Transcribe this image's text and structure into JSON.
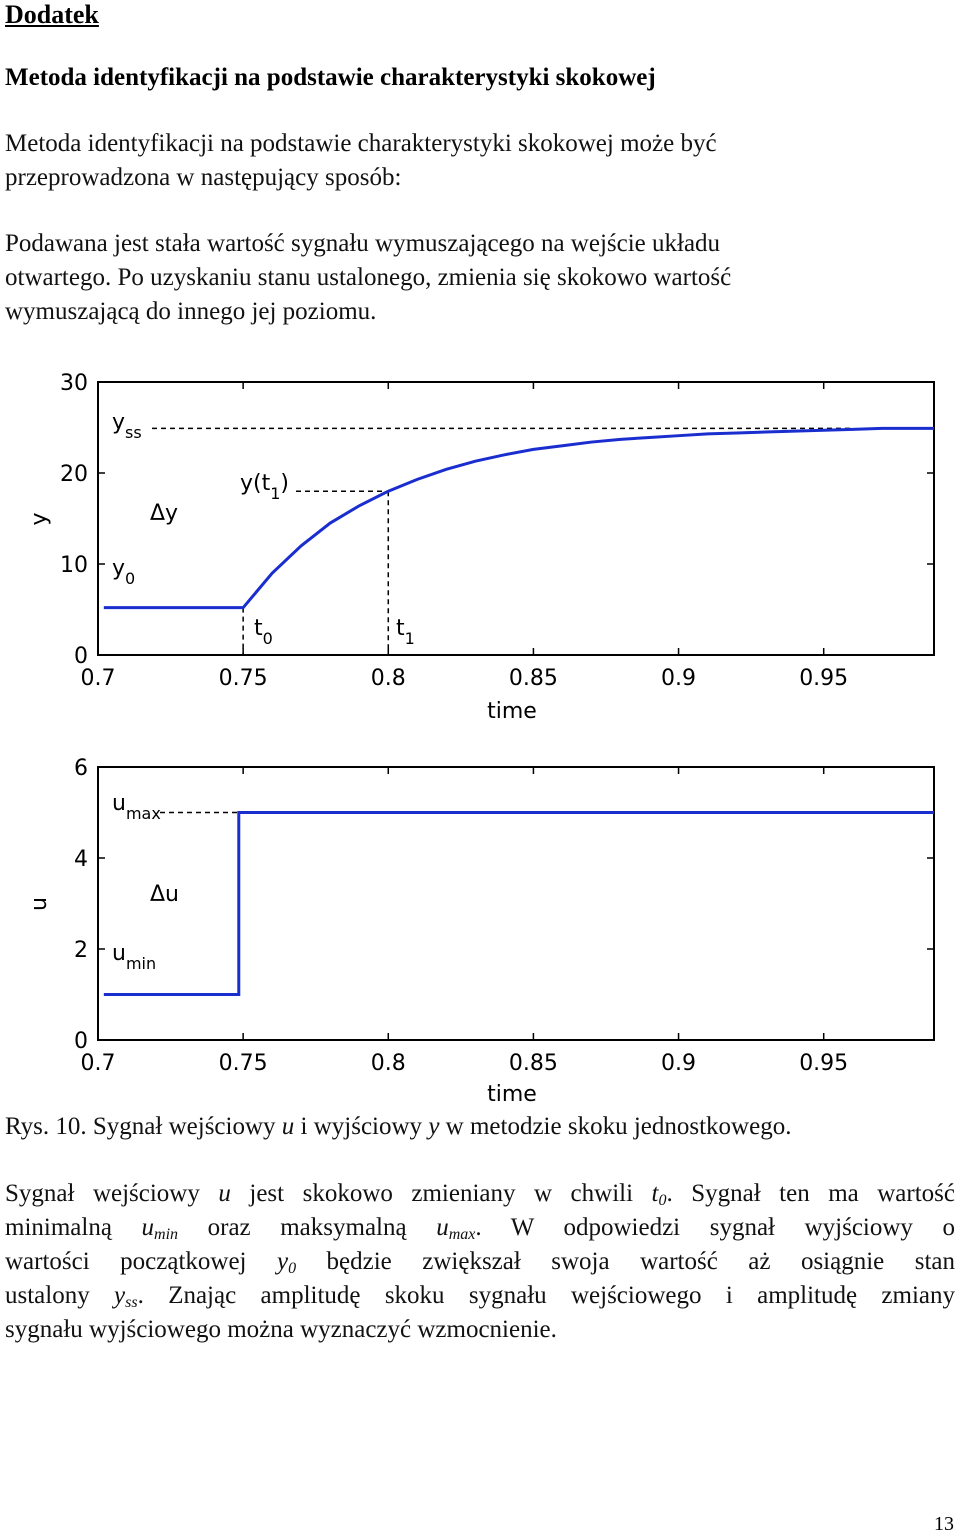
{
  "heading": "Dodatek",
  "subheading": "Metoda identyfikacji na podstawie charakterystyki skokowej",
  "intro": "Metoda identyfikacji na podstawie charakterystyki skokowej może być przeprowadzona w następujący sposób:",
  "intro_lines": [
    "Metoda identyfikacji na podstawie charakterystyki skokowej może być",
    "przeprowadzona w następujący sposób:"
  ],
  "para2_lines": [
    "Podawana jest stała wartość sygnału wymuszającego na wejście układu",
    "otwartego. Po uzyskaniu stanu ustalonego, zmienia się skokowo wartość",
    "wymuszającą do innego jej poziomu."
  ],
  "caption": {
    "prefix": "Rys. 10. Sygnał wejściowy ",
    "u": "u",
    "mid": " i wyjściowy ",
    "y": "y",
    "suffix": " w metodzie skoku jednostkowego."
  },
  "para3": {
    "l1a": "Sygnał wejściowy ",
    "l1u": "u",
    "l1b": " jest skokowo zmieniany w chwili ",
    "l1t": "t",
    "l1t_sub": "0",
    "l1c": ". Sygnał ten ma wartość",
    "l2a": "minimalną ",
    "l2u": "u",
    "l2u_sub": "min",
    "l2b": " oraz maksymalną ",
    "l2u2": "u",
    "l2u2_sub": "max",
    "l2c": ". W odpowiedzi sygnał wyjściowy o",
    "l3a": "wartości początkowej ",
    "l3y": "y",
    "l3y_sub": "0",
    "l3b": " będzie zwiększał swoja wartość aż osiągnie stan",
    "l4a": "ustalony ",
    "l4y": "y",
    "l4y_sub": "ss",
    "l4b": ". Znając amplitudę skoku sygnału wejściowego i amplitudę zmiany",
    "l5": "sygnału wyjściowego można wyznaczyć wzmocnienie."
  },
  "page_number": "13",
  "chart_data": [
    {
      "type": "line",
      "xlabel": "time",
      "ylabel": "y",
      "xlim": [
        0.7,
        0.988
      ],
      "ylim": [
        0,
        30
      ],
      "xticks": [
        "0.7",
        "0.75",
        "0.8",
        "0.85",
        "0.9",
        "0.95"
      ],
      "xtick_values": [
        0.7,
        0.75,
        0.8,
        0.85,
        0.9,
        0.95
      ],
      "yticks": [
        "0",
        "10",
        "20",
        "30"
      ],
      "ytick_values": [
        0,
        10,
        20,
        30
      ],
      "grid": false,
      "line_color": "#1a2ed0",
      "series": [
        {
          "x": [
            0.702,
            0.75,
            0.76,
            0.77,
            0.78,
            0.79,
            0.8,
            0.81,
            0.82,
            0.83,
            0.84,
            0.85,
            0.86,
            0.87,
            0.88,
            0.89,
            0.9,
            0.91,
            0.92,
            0.93,
            0.94,
            0.95,
            0.96,
            0.97,
            0.988
          ],
          "y": [
            5.2,
            5.2,
            9.0,
            12.0,
            14.5,
            16.4,
            18.0,
            19.3,
            20.4,
            21.3,
            22.0,
            22.6,
            23.0,
            23.4,
            23.7,
            23.9,
            24.1,
            24.3,
            24.4,
            24.5,
            24.6,
            24.7,
            24.8,
            24.9,
            24.9
          ]
        }
      ],
      "annotations": {
        "yss": {
          "value": 24.9,
          "label": "y",
          "sub": "ss"
        },
        "yt1": {
          "x": 0.8,
          "y": 18.0,
          "label": "y(t",
          "sub": "1",
          "close": ")"
        },
        "dy": "Δy",
        "y0": {
          "label": "y",
          "sub": "0"
        },
        "t0": {
          "x": 0.75,
          "label": "t",
          "sub": "0"
        },
        "t1": {
          "x": 0.8,
          "label": "t",
          "sub": "1"
        }
      }
    },
    {
      "type": "line",
      "xlabel": "time",
      "ylabel": "u",
      "xlim": [
        0.7,
        0.988
      ],
      "ylim": [
        0,
        6
      ],
      "xticks": [
        "0.7",
        "0.75",
        "0.8",
        "0.85",
        "0.9",
        "0.95"
      ],
      "xtick_values": [
        0.7,
        0.75,
        0.8,
        0.85,
        0.9,
        0.95
      ],
      "yticks": [
        "0",
        "2",
        "4",
        "6"
      ],
      "ytick_values": [
        0,
        2,
        4,
        6
      ],
      "grid": false,
      "line_color": "#1a2ed0",
      "series": [
        {
          "x": [
            0.702,
            0.7485,
            0.7485,
            0.988
          ],
          "y": [
            1,
            1,
            5,
            5
          ]
        }
      ],
      "annotations": {
        "umax": {
          "value": 5,
          "label": "u",
          "sub": "max"
        },
        "du": "Δu",
        "umin": {
          "value": 1,
          "label": "u",
          "sub": "min"
        }
      }
    }
  ]
}
